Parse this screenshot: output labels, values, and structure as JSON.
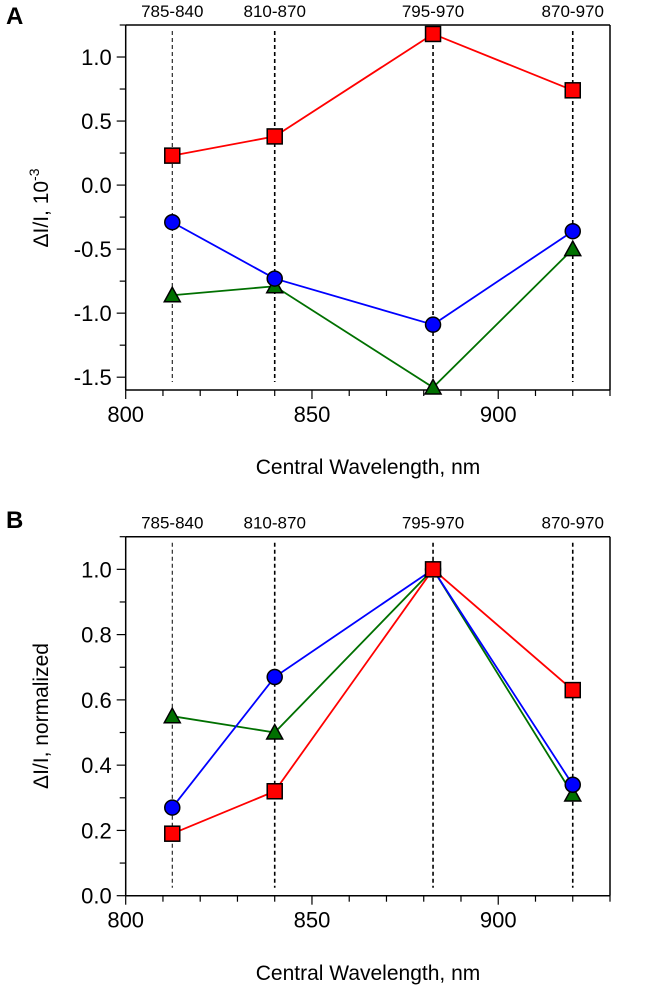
{
  "chart_data": [
    {
      "type": "line",
      "panel_label": "A",
      "xlabel": "Central Wavelength, nm",
      "ylabel": "ΔI/I, 10",
      "ylabel_exponent": "-3",
      "xlim": [
        800,
        930
      ],
      "ylim": [
        -1.6,
        1.25
      ],
      "xticks": [
        "800",
        "850",
        "900"
      ],
      "yticks": [
        "1.0",
        "0.5",
        "0.0",
        "-0.5",
        "-1.0",
        "-1.5"
      ],
      "band_labels": [
        "785-840",
        "810-870",
        "795-970",
        "870-970"
      ],
      "x": [
        812.5,
        840,
        882.5,
        920
      ],
      "grid": false,
      "series": [
        {
          "name": "red-squares",
          "color": "#ff0000",
          "marker": "square",
          "values": [
            0.23,
            0.38,
            1.18,
            0.74
          ]
        },
        {
          "name": "blue-circles",
          "color": "#0000ff",
          "marker": "circle",
          "values": [
            -0.29,
            -0.73,
            -1.09,
            -0.36
          ]
        },
        {
          "name": "green-triangles",
          "color": "#007000",
          "marker": "triangle",
          "values": [
            -0.86,
            -0.79,
            -1.58,
            -0.5
          ]
        }
      ]
    },
    {
      "type": "line",
      "panel_label": "B",
      "xlabel": "Central Wavelength, nm",
      "ylabel": "ΔI/I, normalized",
      "xlim": [
        800,
        930
      ],
      "ylim": [
        0,
        1.1
      ],
      "xticks": [
        "800",
        "850",
        "900"
      ],
      "yticks": [
        "0.0",
        "0.2",
        "0.4",
        "0.6",
        "0.8",
        "1.0"
      ],
      "band_labels": [
        "785-840",
        "810-870",
        "795-970",
        "870-970"
      ],
      "x": [
        812.5,
        840,
        882.5,
        920
      ],
      "grid": false,
      "series": [
        {
          "name": "red-squares",
          "color": "#ff0000",
          "marker": "square",
          "values": [
            0.19,
            0.32,
            1.0,
            0.63
          ]
        },
        {
          "name": "blue-circles",
          "color": "#0000ff",
          "marker": "circle",
          "values": [
            0.27,
            0.67,
            1.0,
            0.34
          ]
        },
        {
          "name": "green-triangles",
          "color": "#007000",
          "marker": "triangle",
          "values": [
            0.55,
            0.5,
            1.0,
            0.31
          ]
        }
      ]
    }
  ]
}
